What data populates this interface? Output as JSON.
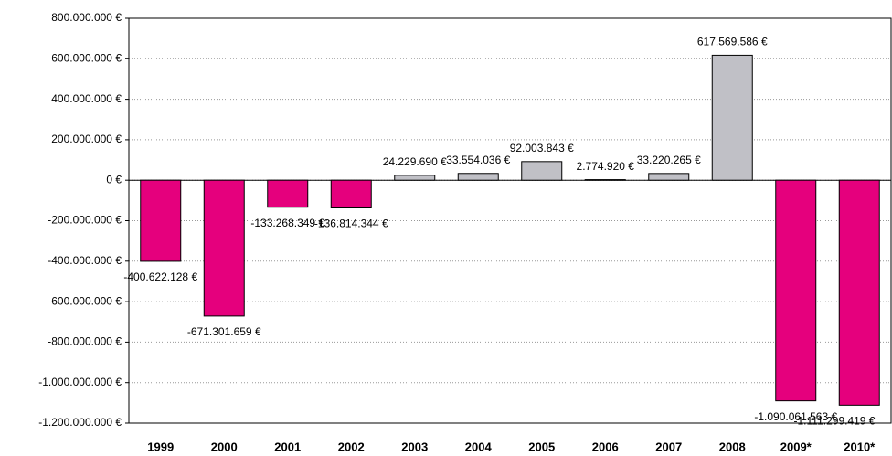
{
  "chart_data": {
    "type": "bar",
    "categories": [
      "1999",
      "2000",
      "2001",
      "2002",
      "2003",
      "2004",
      "2005",
      "2006",
      "2007",
      "2008",
      "2009*",
      "2010*"
    ],
    "values": [
      -400622128,
      -671301659,
      -133268349,
      -136814344,
      24229690,
      33554036,
      92003843,
      2774920,
      33220265,
      617569586,
      -1090061563,
      -1111299419
    ],
    "value_labels": [
      "-400.622.128 €",
      "-671.301.659 €",
      "-133.268.349 €",
      "-136.814.344 €",
      "24.229.690 €",
      "33.554.036 €",
      "92.003.843 €",
      "2.774.920 €",
      "33.220.265 €",
      "617.569.586 €",
      "-1.090.061.563 €",
      "-1.111.299.419 €"
    ],
    "positive_color": "#c0c0c6",
    "negative_color": "#e5007d",
    "ylim": [
      -1200000000,
      800000000
    ],
    "yticks": [
      {
        "value": -1200000000,
        "label": "-1.200.000.000 €"
      },
      {
        "value": -1000000000,
        "label": "-1.000.000.000 €"
      },
      {
        "value": -800000000,
        "label": "-800.000.000 €"
      },
      {
        "value": -600000000,
        "label": "-600.000.000 €"
      },
      {
        "value": -400000000,
        "label": "-400.000.000 €"
      },
      {
        "value": -200000000,
        "label": "-200.000.000 €"
      },
      {
        "value": 0,
        "label": "0 €"
      },
      {
        "value": 200000000,
        "label": "200.000.000 €"
      },
      {
        "value": 400000000,
        "label": "400.000.000 €"
      },
      {
        "value": 600000000,
        "label": "600.000.000 €"
      },
      {
        "value": 800000000,
        "label": "800.000.000 €"
      }
    ],
    "grid": true
  }
}
